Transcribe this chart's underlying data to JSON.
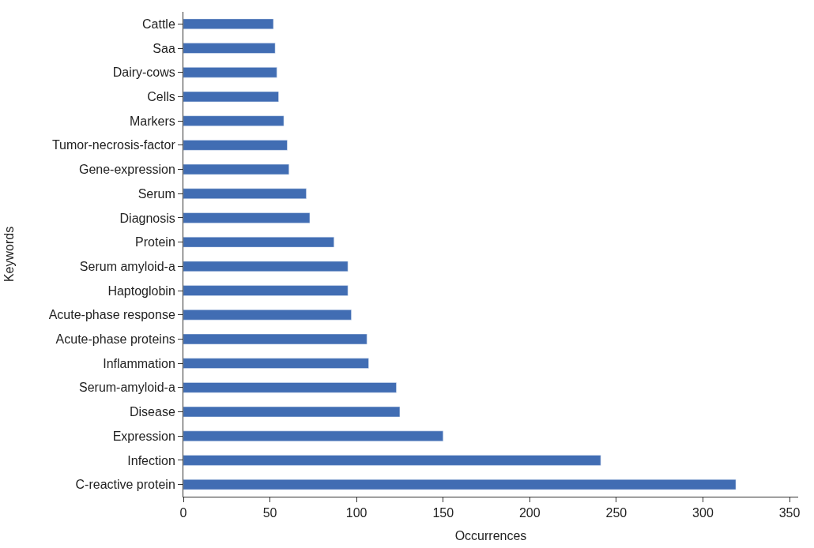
{
  "chart_data": {
    "type": "bar",
    "orientation": "horizontal",
    "xlabel": "Occurrences",
    "ylabel": "Keywords",
    "categories": [
      "Cattle",
      "Saa",
      "Dairy-cows",
      "Cells",
      "Markers",
      "Tumor-necrosis-factor",
      "Gene-expression",
      "Serum",
      "Diagnosis",
      "Protein",
      "Serum amyloid-a",
      "Haptoglobin",
      "Acute-phase response",
      "Acute-phase proteins",
      "Inflammation",
      "Serum-amyloid-a",
      "Disease",
      "Expression",
      "Infection",
      "C-reactive protein"
    ],
    "values": [
      52,
      53,
      54,
      55,
      58,
      60,
      61,
      71,
      73,
      87,
      95,
      95,
      97,
      106,
      107,
      123,
      125,
      150,
      241,
      319
    ],
    "color": "#416db3",
    "xlim": [
      0,
      355
    ],
    "xticks": [
      0,
      50,
      100,
      150,
      200,
      250,
      300,
      350
    ],
    "legend": false
  }
}
